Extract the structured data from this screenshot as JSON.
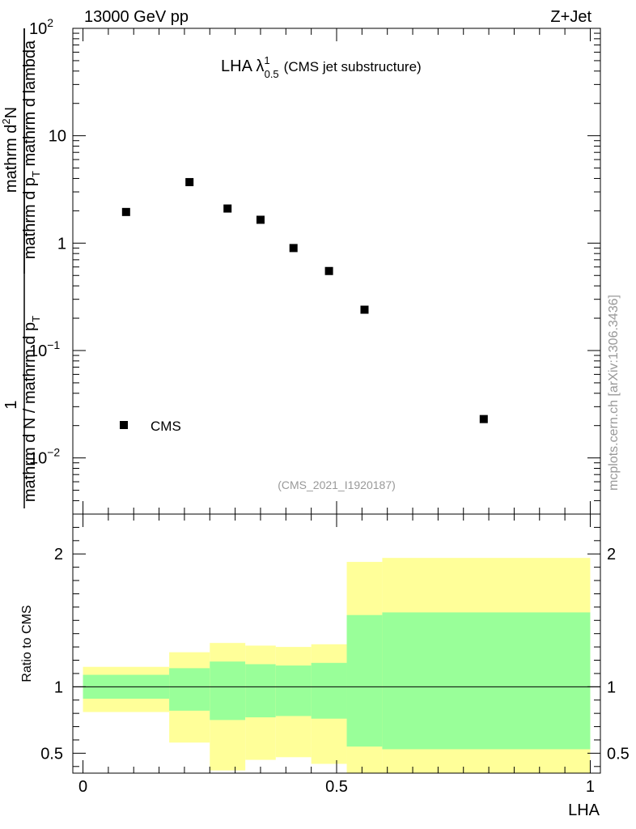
{
  "header": {
    "left": "13000 GeV pp",
    "right": "Z+Jet"
  },
  "side_label": "mcplots.cern.ch [arXiv:1306.3436]",
  "chart_data": [
    {
      "type": "scatter",
      "title_main": "LHA λ",
      "title_sup": "1",
      "title_sub": "0.5",
      "title_suffix": "(CMS jet substructure)",
      "analysis_tag": "(CMS_2021_I1920187)",
      "ylabel_numerator_top": "1",
      "ylabel_denominator_top": "mathrm d N / mathrm d p",
      "ylabel_denominator_top_sub": "T",
      "ylabel_numerator": "mathrm d",
      "ylabel_numerator_sup": "2",
      "ylabel_numerator_end": "N",
      "ylabel_denominator": "mathrm d p",
      "ylabel_denominator_sub": "T",
      "ylabel_denominator_end": " mathrm d lambda",
      "yscale": "log",
      "ylim": [
        0.003,
        100
      ],
      "xlim": [
        -0.02,
        1.02
      ],
      "y_ticks": [
        {
          "value": 100,
          "base": "10",
          "exp": "2"
        },
        {
          "value": 10,
          "base": "10",
          "exp": ""
        },
        {
          "value": 1,
          "base": "1",
          "exp": ""
        },
        {
          "value": 0.1,
          "base": "10",
          "exp": "−1"
        },
        {
          "value": 0.01,
          "base": "10",
          "exp": "−2"
        }
      ],
      "series": [
        {
          "name": "CMS",
          "color": "#000000",
          "x": [
            0.085,
            0.21,
            0.285,
            0.35,
            0.415,
            0.485,
            0.555,
            0.79
          ],
          "y": [
            1.95,
            3.7,
            2.1,
            1.65,
            0.9,
            0.55,
            0.24,
            0.023
          ]
        }
      ],
      "legend": {
        "position": "bottom-left",
        "entries": [
          "CMS"
        ]
      }
    },
    {
      "type": "area",
      "ylabel": "Ratio to CMS",
      "xlabel": "LHA",
      "ylim": [
        0.35,
        2.3
      ],
      "xlim": [
        -0.02,
        1.02
      ],
      "y_ticks": [
        {
          "value": 2,
          "label": "2"
        },
        {
          "value": 1,
          "label": "1"
        },
        {
          "value": 0.5,
          "label": "0.5"
        }
      ],
      "x_ticks": [
        {
          "value": 0,
          "label": "0"
        },
        {
          "value": 0.5,
          "label": "0.5"
        },
        {
          "value": 1,
          "label": "1"
        }
      ],
      "reference_line": 1,
      "bins": [
        {
          "x0": 0.0,
          "x1": 0.17,
          "green": [
            0.91,
            1.09
          ],
          "yellow": [
            0.81,
            1.15
          ]
        },
        {
          "x0": 0.17,
          "x1": 0.25,
          "green": [
            0.82,
            1.14
          ],
          "yellow": [
            0.58,
            1.26
          ]
        },
        {
          "x0": 0.25,
          "x1": 0.32,
          "green": [
            0.75,
            1.19
          ],
          "yellow": [
            0.37,
            1.33
          ]
        },
        {
          "x0": 0.32,
          "x1": 0.38,
          "green": [
            0.77,
            1.17
          ],
          "yellow": [
            0.45,
            1.31
          ]
        },
        {
          "x0": 0.38,
          "x1": 0.45,
          "green": [
            0.78,
            1.16
          ],
          "yellow": [
            0.47,
            1.3
          ]
        },
        {
          "x0": 0.45,
          "x1": 0.52,
          "green": [
            0.76,
            1.18
          ],
          "yellow": [
            0.42,
            1.32
          ]
        },
        {
          "x0": 0.52,
          "x1": 0.59,
          "green": [
            0.55,
            1.54
          ],
          "yellow": [
            0.2,
            1.94
          ]
        },
        {
          "x0": 0.59,
          "x1": 1.0,
          "green": [
            0.53,
            1.56
          ],
          "yellow": [
            0.2,
            1.97
          ]
        }
      ],
      "colors": {
        "green": "#99ff99",
        "yellow": "#ffff99"
      }
    }
  ]
}
